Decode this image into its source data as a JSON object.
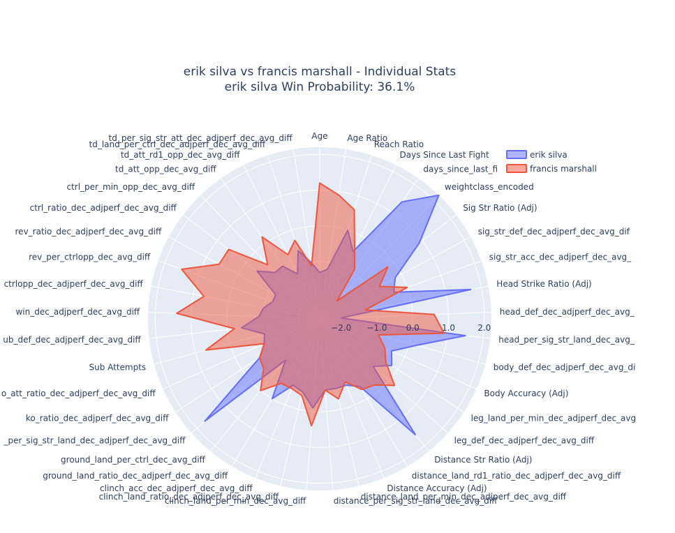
{
  "chart_data": {
    "type": "radar",
    "title": "erik silva vs francis marshall - Individual Stats",
    "subtitle": "erik silva Win Probability: 36.1%",
    "radial_range": [
      -2.6,
      2.2
    ],
    "radial_ticks": [
      "−2.0",
      "−1.0",
      "0.0",
      "1.0",
      "2.0"
    ],
    "radial_tick_values": [
      -2,
      -1,
      0,
      1,
      2
    ],
    "legend_position": "top-right",
    "categories": [
      "Age",
      "Age Ratio",
      "Reach Ratio",
      "Days Since Last Fight",
      "days_since_last_fi",
      "weightclass_encoded",
      "Sig Str Ratio (Adj)",
      "sig_str_def_dec_adjperf_dec_avg_dif",
      "sig_str_acc_dec_adjperf_dec_avg_",
      "Head Strike Ratio (Adj)",
      "head_def_dec_adjperf_dec_avg_",
      "head_per_sig_str_land_dec_avg_",
      "body_def_dec_adjperf_dec_avg_di",
      "Body Accuracy (Adj)",
      "leg_land_per_min_dec_adjperf_dec_avg",
      "leg_def_dec_adjperf_dec_avg_diff",
      "Distance Str Ratio (Adj)",
      "distance_land_rd1_ratio_dec_adjperf_dec_avg_diff",
      "Distance Accuracy (Adj)",
      "distance_land_per_min_dec_adjperf_dec_avg_diff",
      "distance_per_sig_str_land_dec_avg_diff",
      "clinch_land_per_min_dec_avg_diff",
      "clinch_land_ratio_dec_adjperf_dec_avg_diff",
      "clinch_acc_dec_adjperf_dec_avg_diff",
      "ground_land_ratio_dec_adjperf_dec_avg_diff",
      "ground_land_per_ctrl_dec_avg_diff",
      "_per_sig_str_land_dec_adjperf_dec_avg_diff",
      "ko_ratio_dec_adjperf_dec_avg_diff",
      "o_att_ratio_dec_adjperf_dec_avg_diff",
      "Sub Attempts",
      "ub_def_dec_adjperf_dec_avg_diff",
      "win_dec_adjperf_dec_avg_diff",
      "ctrlopp_dec_adjperf_dec_avg_diff",
      "rev_per_ctrlopp_dec_avg_diff",
      "rev_ratio_dec_adjperf_dec_avg_diff",
      "ctrl_ratio_dec_adjperf_dec_avg_diff",
      "ctrl_per_min_opp_dec_avg_diff",
      "td_att_opp_dec_avg_diff",
      "td_att_rd1_opp_dec_avg_diff",
      "td_land_per_ctrl_dec_adjperf_dec_avg_diff",
      "td_per_sig_str_att_dec_adjperf_dec_avg_diff"
    ],
    "series": [
      {
        "name": "erik silva",
        "color": "#636efa",
        "values": [
          -1.3,
          -1.2,
          0.0,
          -0.5,
          1.4,
          2.3,
          0.9,
          -0.2,
          -0.4,
          1.7,
          -2.0,
          1.5,
          0.2,
          -0.4,
          -0.2,
          -0.6,
          1.6,
          -0.4,
          -0.6,
          -0.6,
          -0.6,
          -0.1,
          -0.5,
          -0.6,
          0.0,
          -1.1,
          1.7,
          -0.6,
          -0.9,
          -1.0,
          -0.4,
          -0.9,
          -1.0,
          -1.2,
          -1.2,
          -0.4,
          -0.8,
          -0.8,
          -1.2,
          -0.6,
          -1.0
        ]
      },
      {
        "name": "francis marshall",
        "color": "#ef553b",
        "values": [
          1.2,
          0.9,
          0.6,
          -0.4,
          -0.9,
          -1.9,
          -0.2,
          -0.7,
          0.0,
          -1.3,
          0.6,
          0.9,
          -0.9,
          -0.6,
          -0.4,
          0.2,
          -0.2,
          -0.3,
          -0.7,
          -0.3,
          -0.6,
          0.4,
          -0.4,
          -0.5,
          -0.5,
          0.0,
          -0.5,
          -0.6,
          -0.9,
          0.7,
          -0.2,
          1.4,
          0.7,
          1.5,
          0.6,
          0.6,
          -0.5,
          0.2,
          -0.6,
          -0.3,
          -1.1
        ]
      }
    ]
  }
}
